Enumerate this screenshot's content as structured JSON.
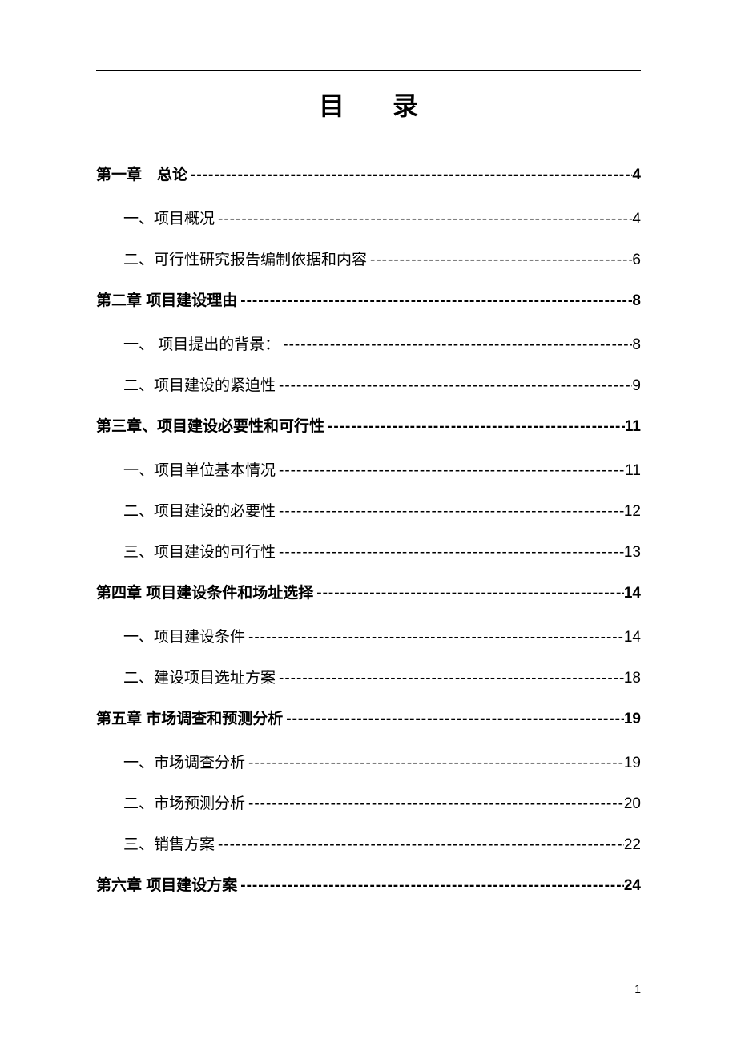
{
  "title": "目录",
  "page_number": "1",
  "text_color": "#000000",
  "background_color": "#ffffff",
  "title_fontsize": 32,
  "chapter_fontsize": 19,
  "sub_fontsize": 19,
  "toc": [
    {
      "type": "chapter",
      "label": "第一章　总论",
      "page": "4"
    },
    {
      "type": "sub",
      "label": "一、项目概况",
      "page": "4"
    },
    {
      "type": "sub",
      "label": "二、可行性研究报告编制依据和内容",
      "page": "6"
    },
    {
      "type": "chapter",
      "label": "第二章 项目建设理由",
      "page": "8"
    },
    {
      "type": "sub",
      "label": "一、 项目提出的背景：",
      "page": "8"
    },
    {
      "type": "sub",
      "label": "二、项目建设的紧迫性",
      "page": "9"
    },
    {
      "type": "chapter",
      "label": "第三章、项目建设必要性和可行性",
      "page": "11"
    },
    {
      "type": "sub",
      "label": "一、项目单位基本情况",
      "page": "11"
    },
    {
      "type": "sub",
      "label": "二、项目建设的必要性",
      "page": "12"
    },
    {
      "type": "sub",
      "label": "三、项目建设的可行性",
      "page": "13"
    },
    {
      "type": "chapter",
      "label": "第四章 项目建设条件和场址选择",
      "page": "14"
    },
    {
      "type": "sub",
      "label": "一、项目建设条件",
      "page": "14"
    },
    {
      "type": "sub",
      "label": "二、建设项目选址方案",
      "page": "18"
    },
    {
      "type": "chapter",
      "label": "第五章 市场调查和预测分析",
      "page": "19"
    },
    {
      "type": "sub",
      "label": "一、市场调查分析",
      "page": "19"
    },
    {
      "type": "sub",
      "label": "二、市场预测分析",
      "page": "20"
    },
    {
      "type": "sub",
      "label": "三、销售方案",
      "page": "22"
    },
    {
      "type": "chapter",
      "label": "第六章 项目建设方案",
      "page": "24"
    }
  ]
}
